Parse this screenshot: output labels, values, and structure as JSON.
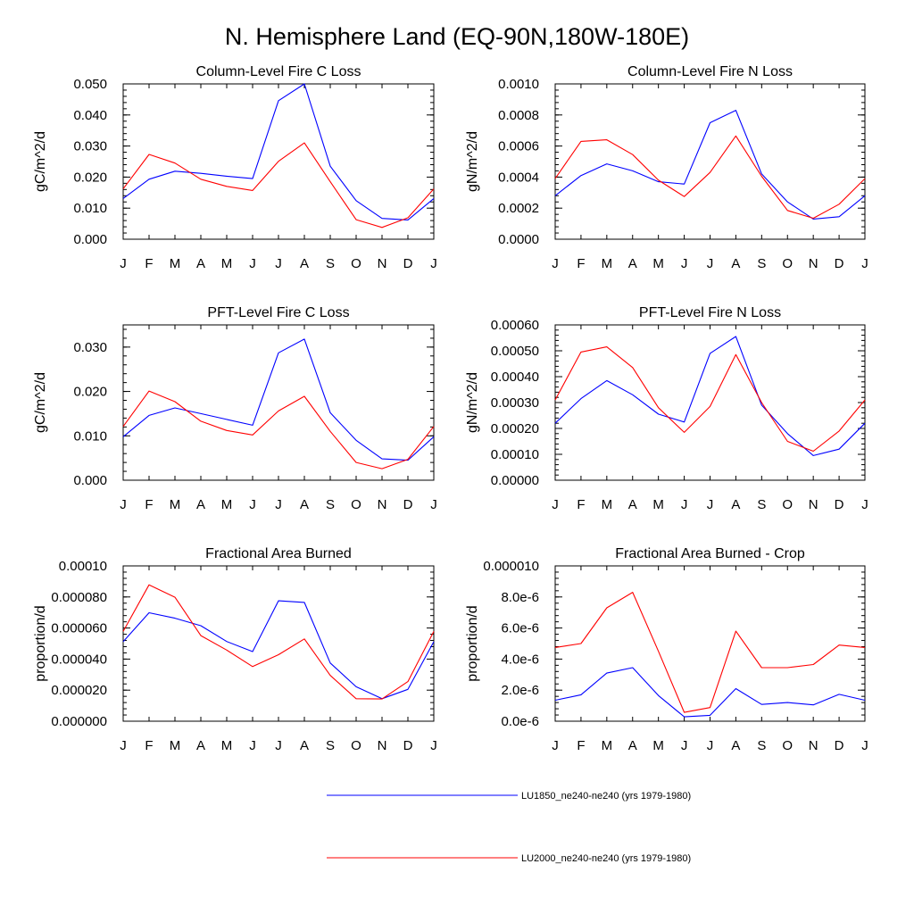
{
  "figure_title": "N. Hemisphere Land (EQ-90N,180W-180E)",
  "colors": {
    "series_1": "#0000ff",
    "series_2": "#ff0000",
    "axes": "#000000"
  },
  "legend": {
    "items": [
      {
        "label": "LU1850_ne240-ne240 (yrs 1979-1980)",
        "color": "#0000ff"
      },
      {
        "label": "LU2000_ne240-ne240 (yrs 1979-1980)",
        "color": "#ff0000"
      }
    ]
  },
  "chart_data": [
    {
      "type": "line",
      "title": "Column-Level Fire C Loss",
      "ylabel": "gC/m^2/d",
      "categories": [
        "J",
        "F",
        "M",
        "A",
        "M",
        "J",
        "J",
        "A",
        "S",
        "O",
        "N",
        "D",
        "J"
      ],
      "ylim": [
        0,
        0.05
      ],
      "yticks": [
        0,
        0.01,
        0.02,
        0.03,
        0.04,
        0.05
      ],
      "yticklabels": [
        "0.000",
        "0.010",
        "0.020",
        "0.030",
        "0.040",
        "0.050"
      ],
      "series": [
        {
          "values": [
            0.0131,
            0.0193,
            0.0219,
            0.0212,
            0.0203,
            0.0195,
            0.0446,
            0.05,
            0.0235,
            0.0124,
            0.0067,
            0.0062,
            0.0131
          ]
        },
        {
          "values": [
            0.0162,
            0.0273,
            0.0245,
            0.0193,
            0.017,
            0.0157,
            0.0251,
            0.031,
            0.0185,
            0.0063,
            0.0038,
            0.0069,
            0.0162
          ]
        }
      ]
    },
    {
      "type": "line",
      "title": "Column-Level Fire N Loss",
      "ylabel": "gN/m^2/d",
      "categories": [
        "J",
        "F",
        "M",
        "A",
        "M",
        "J",
        "J",
        "A",
        "S",
        "O",
        "N",
        "D",
        "J"
      ],
      "ylim": [
        0,
        0.001
      ],
      "yticks": [
        0,
        0.0002,
        0.0004,
        0.0006,
        0.0008,
        0.001
      ],
      "yticklabels": [
        "0.0000",
        "0.0002",
        "0.0004",
        "0.0006",
        "0.0008",
        "0.0010"
      ],
      "series": [
        {
          "values": [
            0.00028,
            0.00041,
            0.000485,
            0.00044,
            0.00037,
            0.000355,
            0.00075,
            0.00083,
            0.00042,
            0.00024,
            0.00013,
            0.000145,
            0.00028
          ]
        },
        {
          "values": [
            0.00039,
            0.00063,
            0.00064,
            0.000545,
            0.00038,
            0.000275,
            0.00043,
            0.000665,
            0.000405,
            0.000185,
            0.000135,
            0.000225,
            0.00039
          ]
        }
      ]
    },
    {
      "type": "line",
      "title": "PFT-Level Fire C Loss",
      "ylabel": "gC/m^2/d",
      "categories": [
        "J",
        "F",
        "M",
        "A",
        "M",
        "J",
        "J",
        "A",
        "S",
        "O",
        "N",
        "D",
        "J"
      ],
      "ylim": [
        0,
        0.035
      ],
      "yticks": [
        0,
        0.01,
        0.02,
        0.03
      ],
      "yticklabels": [
        "0.000",
        "0.010",
        "0.020",
        "0.030"
      ],
      "series": [
        {
          "values": [
            0.0098,
            0.0146,
            0.0163,
            0.015,
            0.0137,
            0.0124,
            0.0287,
            0.0318,
            0.0152,
            0.009,
            0.0048,
            0.0045,
            0.0098
          ]
        },
        {
          "values": [
            0.0121,
            0.0201,
            0.0177,
            0.0133,
            0.0112,
            0.0102,
            0.0156,
            0.0189,
            0.011,
            0.004,
            0.0026,
            0.0047,
            0.0121
          ]
        }
      ]
    },
    {
      "type": "line",
      "title": "PFT-Level Fire N Loss",
      "ylabel": "gN/m^2/d",
      "categories": [
        "J",
        "F",
        "M",
        "A",
        "M",
        "J",
        "J",
        "A",
        "S",
        "O",
        "N",
        "D",
        "J"
      ],
      "ylim": [
        0,
        0.0006
      ],
      "yticks": [
        0,
        0.0001,
        0.0002,
        0.0003,
        0.0004,
        0.0005,
        0.0006
      ],
      "yticklabels": [
        "0.00000",
        "0.00010",
        "0.00020",
        "0.00030",
        "0.00040",
        "0.00050",
        "0.00060"
      ],
      "series": [
        {
          "values": [
            0.00022,
            0.000315,
            0.000385,
            0.00033,
            0.000255,
            0.000225,
            0.00049,
            0.000555,
            0.00029,
            0.00018,
            9.5e-05,
            0.00012,
            0.00022
          ]
        },
        {
          "values": [
            0.00031,
            0.000495,
            0.000515,
            0.000435,
            0.00028,
            0.000185,
            0.000285,
            0.000485,
            0.0003,
            0.00015,
            0.000112,
            0.00019,
            0.00031
          ]
        }
      ]
    },
    {
      "type": "line",
      "title": "Fractional Area Burned",
      "ylabel": "proportion/d",
      "categories": [
        "J",
        "F",
        "M",
        "A",
        "M",
        "J",
        "J",
        "A",
        "S",
        "O",
        "N",
        "D",
        "J"
      ],
      "ylim": [
        0,
        0.0001
      ],
      "yticks": [
        0,
        2e-05,
        4e-05,
        6e-05,
        8e-05,
        0.0001
      ],
      "yticklabels": [
        "0.000000",
        "0.000020",
        "0.000040",
        "0.000060",
        "0.000080",
        "0.00010"
      ],
      "series": [
        {
          "values": [
            5.12e-05,
            6.98e-05,
            6.63e-05,
            6.15e-05,
            5.13e-05,
            4.48e-05,
            7.75e-05,
            7.65e-05,
            3.75e-05,
            2.22e-05,
            1.45e-05,
            2.05e-05,
            5.12e-05
          ]
        },
        {
          "values": [
            5.78e-05,
            8.78e-05,
            7.98e-05,
            5.51e-05,
            4.58e-05,
            3.52e-05,
            4.28e-05,
            5.3e-05,
            2.95e-05,
            1.45e-05,
            1.43e-05,
            2.55e-05,
            5.78e-05
          ]
        }
      ]
    },
    {
      "type": "line",
      "title": "Fractional Area Burned - Crop",
      "ylabel": "proportion/d",
      "categories": [
        "J",
        "F",
        "M",
        "A",
        "M",
        "J",
        "J",
        "A",
        "S",
        "O",
        "N",
        "D",
        "J"
      ],
      "ylim": [
        0,
        1e-05
      ],
      "yticks": [
        0,
        2e-06,
        4e-06,
        6e-06,
        8e-06,
        1e-05
      ],
      "yticklabels": [
        "0.0e-6",
        "2.0e-6",
        "4.0e-6",
        "6.0e-6",
        "8.0e-6",
        "0.000010"
      ],
      "series": [
        {
          "values": [
            1.35e-06,
            1.7e-06,
            3.1e-06,
            3.45e-06,
            1.65e-06,
            2.8e-07,
            3.8e-07,
            2.1e-06,
            1.08e-06,
            1.2e-06,
            1.05e-06,
            1.73e-06,
            1.35e-06
          ]
        },
        {
          "values": [
            4.75e-06,
            5e-06,
            7.3e-06,
            8.3e-06,
            4.5e-06,
            5.7e-07,
            8.8e-07,
            5.8e-06,
            3.45e-06,
            3.45e-06,
            3.65e-06,
            4.9e-06,
            4.75e-06
          ]
        }
      ]
    }
  ]
}
